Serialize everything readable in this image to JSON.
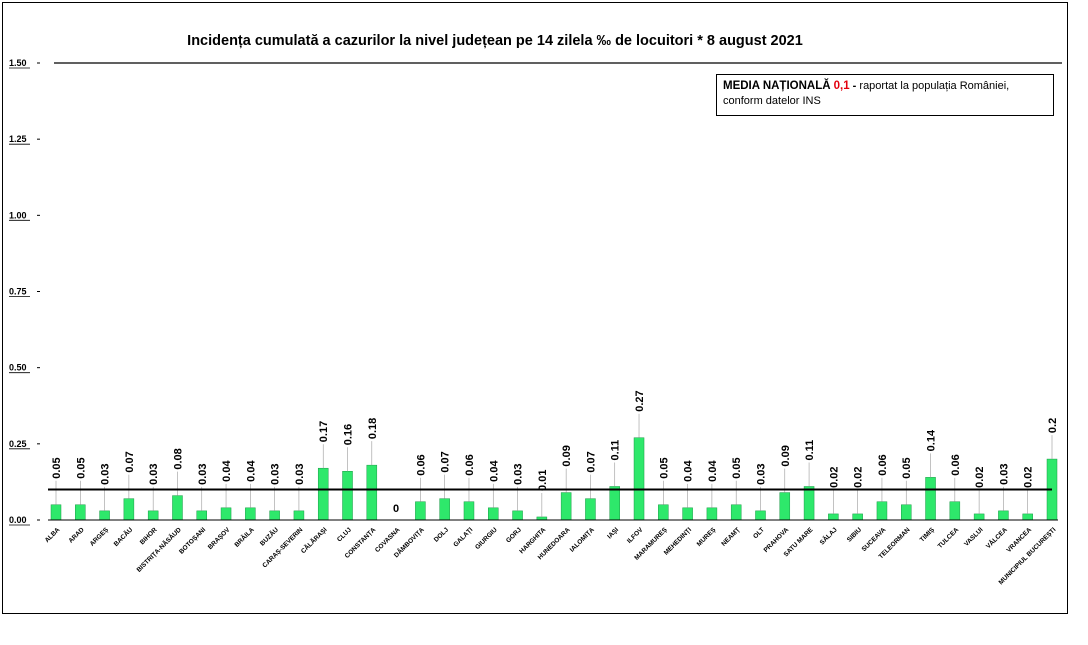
{
  "chart_data": {
    "type": "bar",
    "title": "Incidența cumulată a cazurilor la nivel județean pe 14 zilela ‰ de locuitori *  8 august 2021",
    "xlabel": "",
    "ylabel": "",
    "ylim": [
      0,
      1.5
    ],
    "yticks": [
      "0.00",
      "0.25",
      "0.50",
      "0.75",
      "1.00",
      "1.25",
      "1.50"
    ],
    "reference_value": 0.1,
    "bar_color": "#2ee86b",
    "categories": [
      "ALBA",
      "ARAD",
      "ARGEȘ",
      "BACĂU",
      "BIHOR",
      "BISTRIȚA-NĂSĂUD",
      "BOTOȘANI",
      "BRAȘOV",
      "BRĂILA",
      "BUZĂU",
      "CARAȘ-SEVERIN",
      "CĂLĂRAȘI",
      "CLUJ",
      "CONSTANȚA",
      "COVASNA",
      "DÂMBOVIȚA",
      "DOLJ",
      "GALAȚI",
      "GIURGIU",
      "GORJ",
      "HARGHITA",
      "HUNEDOARA",
      "IALOMIȚA",
      "IAȘI",
      "ILFOV",
      "MARAMUREȘ",
      "MEHEDINȚI",
      "MUREȘ",
      "NEAMȚ",
      "OLT",
      "PRAHOVA",
      "SATU MARE",
      "SĂLAJ",
      "SIBIU",
      "SUCEAVA",
      "TELEORMAN",
      "TIMIȘ",
      "TULCEA",
      "VASLUI",
      "VÂLCEA",
      "VRANCEA",
      "MUNICIPIUL BUCUREȘTI"
    ],
    "values": [
      0.05,
      0.05,
      0.03,
      0.07,
      0.03,
      0.08,
      0.03,
      0.04,
      0.04,
      0.03,
      0.03,
      0.17,
      0.16,
      0.18,
      0,
      0.06,
      0.07,
      0.06,
      0.04,
      0.03,
      0.01,
      0.09,
      0.07,
      0.11,
      0.27,
      0.05,
      0.04,
      0.04,
      0.05,
      0.03,
      0.09,
      0.11,
      0.02,
      0.02,
      0.06,
      0.05,
      0.14,
      0.06,
      0.02,
      0.03,
      0.02,
      0.2
    ],
    "value_labels": [
      "0.05",
      "0.05",
      "0.03",
      "0.07",
      "0.03",
      "0.08",
      "0.03",
      "0.04",
      "0.04",
      "0.03",
      "0.03",
      "0.17",
      "0.16",
      "0.18",
      "0",
      "0.06",
      "0.07",
      "0.06",
      "0.04",
      "0.03",
      "0.01",
      "0.09",
      "0.07",
      "0.11",
      "0.27",
      "0.05",
      "0.04",
      "0.04",
      "0.05",
      "0.03",
      "0.09",
      "0.11",
      "0.02",
      "0.02",
      "0.06",
      "0.05",
      "0.14",
      "0.06",
      "0.02",
      "0.03",
      "0.02",
      "0.2"
    ],
    "labeled_bars": [
      0,
      1,
      2,
      3,
      4,
      5,
      6,
      7,
      8,
      9,
      10,
      11,
      12,
      13,
      14,
      15,
      16,
      17,
      18,
      19,
      20,
      21,
      22,
      23,
      24,
      25,
      26,
      27,
      28,
      29,
      30,
      31,
      32,
      33,
      34,
      35,
      36,
      37,
      38,
      39,
      40,
      41
    ]
  },
  "legend": {
    "label_bold": "MEDIA NAȚIONALĂ",
    "value": "0,1",
    "separator": "-",
    "text_line1": "raportat la populația României,",
    "text_line2": "conform datelor INS"
  }
}
